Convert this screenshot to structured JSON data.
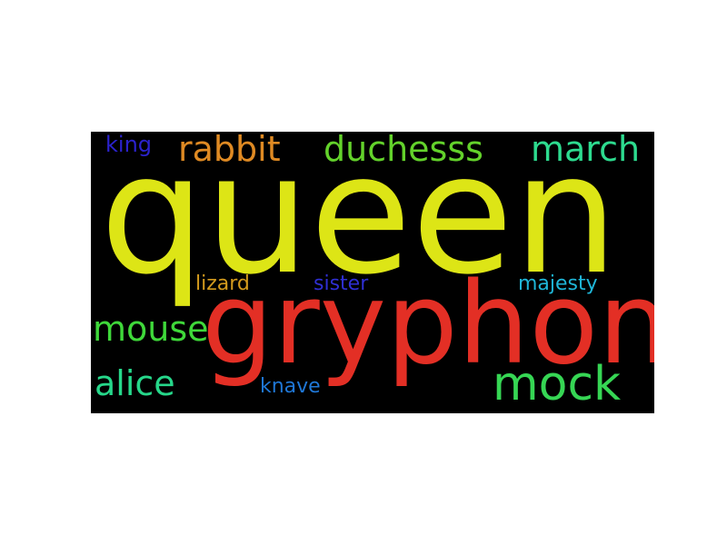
{
  "words": [
    {
      "id": "queen",
      "text": "queen",
      "color": "#dde516"
    },
    {
      "id": "gryphon",
      "text": "gryphon",
      "color": "#e32f25"
    },
    {
      "id": "rabbit",
      "text": "rabbit",
      "color": "#df8a23"
    },
    {
      "id": "duchess",
      "text": "duchesss",
      "color": "#63d22b"
    },
    {
      "id": "march",
      "text": "march",
      "color": "#2ddb8f"
    },
    {
      "id": "king",
      "text": "king",
      "color": "#2b22cc"
    },
    {
      "id": "lizard",
      "text": "lizard",
      "color": "#d39a1d"
    },
    {
      "id": "sister",
      "text": "sister",
      "color": "#2f2fd3"
    },
    {
      "id": "majesty",
      "text": "majesty",
      "color": "#1fb6d8"
    },
    {
      "id": "mouse",
      "text": "mouse",
      "color": "#3fd83a"
    },
    {
      "id": "alice",
      "text": "alice",
      "color": "#26d78a"
    },
    {
      "id": "knave",
      "text": "knave",
      "color": "#1f77d6"
    },
    {
      "id": "mock",
      "text": "mock",
      "color": "#36d654"
    }
  ]
}
